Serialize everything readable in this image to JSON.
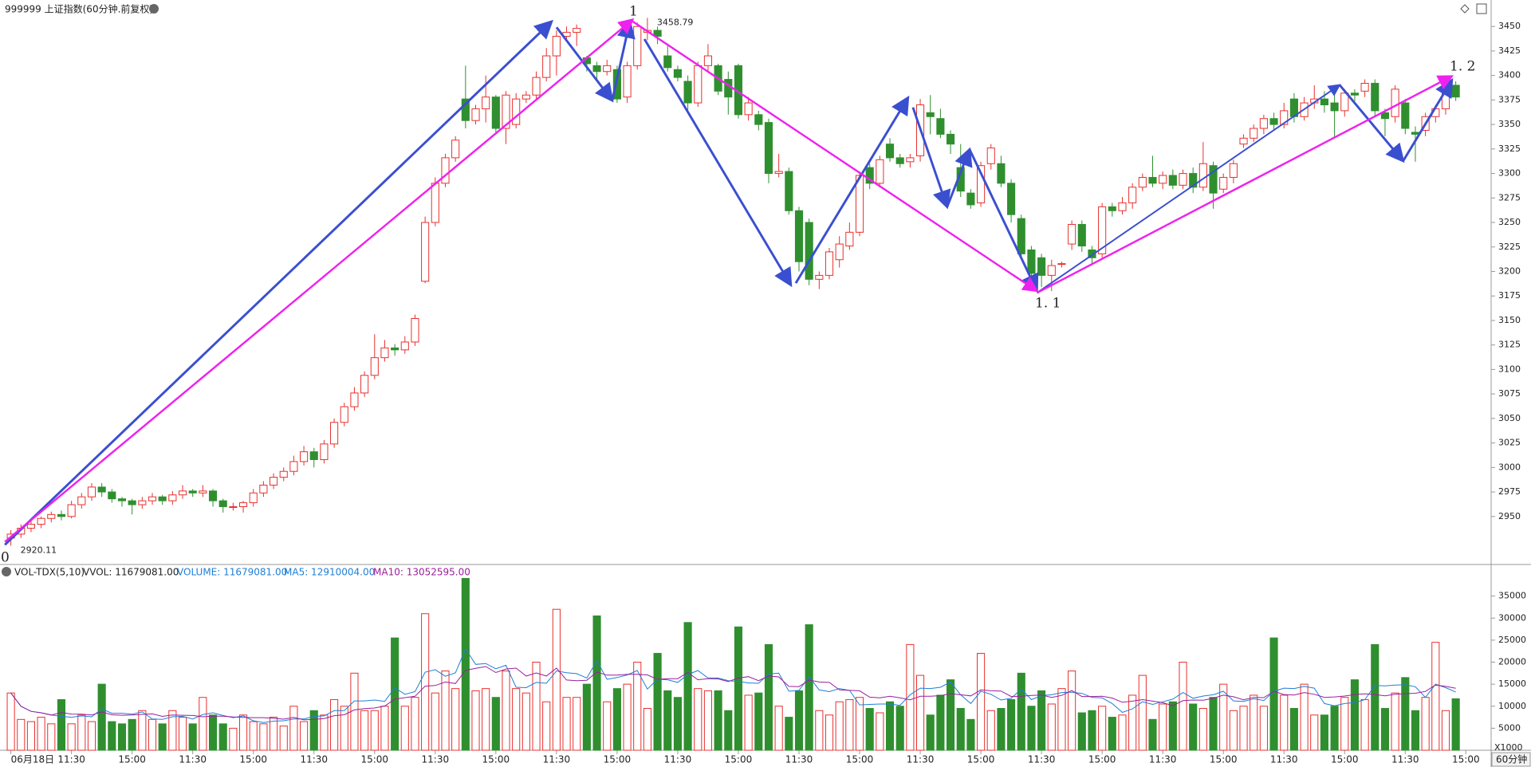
{
  "chart_data": {
    "type": "candlestick",
    "title": "999999 上证指数(60分钟.前复权)",
    "up_color": "#e8312f",
    "down_color": "#2f8f2f",
    "ylim": [
      2901,
      3477
    ],
    "yticks": [
      2950,
      2975,
      3000,
      3025,
      3050,
      3075,
      3100,
      3125,
      3150,
      3175,
      3200,
      3225,
      3250,
      3275,
      3300,
      3325,
      3350,
      3375,
      3400,
      3425,
      3450
    ],
    "xlim": [
      -0.6,
      146.5
    ],
    "xticks": [
      {
        "value": 0,
        "label": "06月18日"
      },
      {
        "value": 6,
        "label": "11:30"
      },
      {
        "value": 12,
        "label": "15:00"
      },
      {
        "value": 18,
        "label": "11:30"
      },
      {
        "value": 24,
        "label": "15:00"
      },
      {
        "value": 30,
        "label": "11:30"
      },
      {
        "value": 36,
        "label": "15:00"
      },
      {
        "value": 42,
        "label": "11:30"
      },
      {
        "value": 48,
        "label": "15:00"
      },
      {
        "value": 54,
        "label": "11:30"
      },
      {
        "value": 60,
        "label": "15:00"
      },
      {
        "value": 66,
        "label": "11:30"
      },
      {
        "value": 72,
        "label": "15:00"
      },
      {
        "value": 78,
        "label": "11:30"
      },
      {
        "value": 84,
        "label": "15:00"
      },
      {
        "value": 90,
        "label": "11:30"
      },
      {
        "value": 96,
        "label": "15:00"
      },
      {
        "value": 102,
        "label": "11:30"
      },
      {
        "value": 108,
        "label": "15:00"
      },
      {
        "value": 114,
        "label": "11:30"
      },
      {
        "value": 120,
        "label": "15:00"
      },
      {
        "value": 126,
        "label": "11:30"
      },
      {
        "value": 132,
        "label": "15:00"
      },
      {
        "value": 138,
        "label": "11:30"
      },
      {
        "value": 144,
        "label": "15:00"
      }
    ],
    "candles": [
      [
        2928,
        2932,
        2936,
        2920.11
      ],
      [
        2932,
        2938,
        2942,
        2928
      ],
      [
        2938,
        2942,
        2946,
        2934
      ],
      [
        2942,
        2948,
        2950,
        2938
      ],
      [
        2948,
        2952,
        2955,
        2944
      ],
      [
        2952,
        2950,
        2956,
        2946
      ],
      [
        2950,
        2962,
        2966,
        2948
      ],
      [
        2962,
        2970,
        2974,
        2958
      ],
      [
        2970,
        2980,
        2984,
        2966
      ],
      [
        2980,
        2975,
        2984,
        2970
      ],
      [
        2975,
        2968,
        2978,
        2964
      ],
      [
        2968,
        2966,
        2970,
        2960
      ],
      [
        2966,
        2962,
        2968,
        2952
      ],
      [
        2962,
        2966,
        2970,
        2958
      ],
      [
        2966,
        2970,
        2974,
        2962
      ],
      [
        2970,
        2966,
        2972,
        2962
      ],
      [
        2966,
        2972,
        2976,
        2962
      ],
      [
        2972,
        2976,
        2982,
        2968
      ],
      [
        2976,
        2974,
        2978,
        2970
      ],
      [
        2974,
        2976,
        2982,
        2970
      ],
      [
        2976,
        2966,
        2978,
        2960
      ],
      [
        2966,
        2960,
        2968,
        2954
      ],
      [
        2960,
        2960,
        2964,
        2956
      ],
      [
        2960,
        2964,
        2966,
        2954
      ],
      [
        2964,
        2974,
        2978,
        2960
      ],
      [
        2974,
        2982,
        2986,
        2970
      ],
      [
        2982,
        2990,
        2994,
        2978
      ],
      [
        2990,
        2996,
        3000,
        2986
      ],
      [
        2996,
        3006,
        3012,
        2992
      ],
      [
        3006,
        3016,
        3022,
        3002
      ],
      [
        3016,
        3008,
        3020,
        3000
      ],
      [
        3008,
        3024,
        3028,
        3004
      ],
      [
        3024,
        3046,
        3050,
        3020
      ],
      [
        3046,
        3062,
        3066,
        3042
      ],
      [
        3062,
        3076,
        3082,
        3058
      ],
      [
        3076,
        3094,
        3098,
        3072
      ],
      [
        3094,
        3112,
        3136,
        3090
      ],
      [
        3112,
        3122,
        3130,
        3108
      ],
      [
        3122,
        3120,
        3126,
        3114
      ],
      [
        3120,
        3128,
        3134,
        3116
      ],
      [
        3128,
        3152,
        3156,
        3124
      ],
      [
        3190,
        3250,
        3256,
        3188
      ],
      [
        3250,
        3290,
        3296,
        3246
      ],
      [
        3290,
        3316,
        3320,
        3286
      ],
      [
        3316,
        3334,
        3338,
        3312
      ],
      [
        3376,
        3354,
        3410,
        3346
      ],
      [
        3354,
        3366,
        3370,
        3350
      ],
      [
        3366,
        3378,
        3400,
        3352
      ],
      [
        3378,
        3346,
        3380,
        3342
      ],
      [
        3346,
        3380,
        3384,
        3330
      ],
      [
        3350,
        3376,
        3382,
        3346
      ],
      [
        3376,
        3380,
        3384,
        3372
      ],
      [
        3380,
        3398,
        3404,
        3376
      ],
      [
        3398,
        3420,
        3428,
        3394
      ],
      [
        3420,
        3440,
        3446,
        3400
      ],
      [
        3440,
        3444,
        3450,
        3436
      ],
      [
        3444,
        3448,
        3452,
        3430
      ],
      [
        3418,
        3412,
        3420,
        3404
      ],
      [
        3410,
        3404,
        3414,
        3396
      ],
      [
        3404,
        3410,
        3416,
        3400
      ],
      [
        3406,
        3376,
        3410,
        3372
      ],
      [
        3378,
        3410,
        3414,
        3372
      ],
      [
        3410,
        3450,
        3454,
        3406
      ],
      [
        3444,
        3446,
        3458.79,
        3436
      ],
      [
        3446,
        3440,
        3450,
        3432
      ],
      [
        3420,
        3408,
        3430,
        3404
      ],
      [
        3406,
        3398,
        3410,
        3394
      ],
      [
        3394,
        3372,
        3400,
        3362
      ],
      [
        3372,
        3410,
        3414,
        3368
      ],
      [
        3410,
        3420,
        3432,
        3404
      ],
      [
        3410,
        3384,
        3412,
        3380
      ],
      [
        3396,
        3378,
        3404,
        3360
      ],
      [
        3410,
        3360,
        3412,
        3356
      ],
      [
        3360,
        3372,
        3378,
        3354
      ],
      [
        3360,
        3350,
        3364,
        3344
      ],
      [
        3352,
        3300,
        3356,
        3290
      ],
      [
        3300,
        3302,
        3320,
        3296
      ],
      [
        3302,
        3262,
        3306,
        3258
      ],
      [
        3262,
        3210,
        3266,
        3200
      ],
      [
        3250,
        3192,
        3254,
        3186
      ],
      [
        3192,
        3196,
        3200,
        3182
      ],
      [
        3196,
        3220,
        3224,
        3192
      ],
      [
        3212,
        3228,
        3236,
        3204
      ],
      [
        3226,
        3240,
        3250,
        3222
      ],
      [
        3240,
        3298,
        3302,
        3236
      ],
      [
        3306,
        3290,
        3310,
        3284
      ],
      [
        3290,
        3314,
        3318,
        3286
      ],
      [
        3330,
        3316,
        3336,
        3312
      ],
      [
        3316,
        3310,
        3320,
        3306
      ],
      [
        3312,
        3316,
        3320,
        3306
      ],
      [
        3318,
        3370,
        3376,
        3312
      ],
      [
        3362,
        3358,
        3380,
        3340
      ],
      [
        3356,
        3340,
        3366,
        3336
      ],
      [
        3340,
        3330,
        3344,
        3320
      ],
      [
        3306,
        3282,
        3330,
        3276
      ],
      [
        3280,
        3268,
        3284,
        3264
      ],
      [
        3270,
        3308,
        3312,
        3266
      ],
      [
        3310,
        3326,
        3330,
        3304
      ],
      [
        3310,
        3290,
        3318,
        3286
      ],
      [
        3290,
        3258,
        3294,
        3250
      ],
      [
        3254,
        3218,
        3258,
        3212
      ],
      [
        3222,
        3198,
        3226,
        3188
      ],
      [
        3214,
        3196,
        3218,
        3184
      ],
      [
        3196,
        3206,
        3212,
        3180
      ],
      [
        3208,
        3208,
        3210,
        3204
      ],
      [
        3228,
        3248,
        3252,
        3222
      ],
      [
        3248,
        3226,
        3252,
        3220
      ],
      [
        3222,
        3214,
        3226,
        3208
      ],
      [
        3218,
        3266,
        3270,
        3214
      ],
      [
        3266,
        3262,
        3270,
        3256
      ],
      [
        3262,
        3270,
        3276,
        3258
      ],
      [
        3270,
        3286,
        3290,
        3264
      ],
      [
        3286,
        3296,
        3300,
        3282
      ],
      [
        3296,
        3290,
        3318,
        3286
      ],
      [
        3290,
        3298,
        3302,
        3284
      ],
      [
        3298,
        3288,
        3304,
        3284
      ],
      [
        3288,
        3300,
        3304,
        3284
      ],
      [
        3300,
        3286,
        3306,
        3280
      ],
      [
        3286,
        3310,
        3332,
        3282
      ],
      [
        3308,
        3280,
        3312,
        3264
      ],
      [
        3284,
        3296,
        3300,
        3280
      ],
      [
        3296,
        3310,
        3314,
        3290
      ],
      [
        3330,
        3336,
        3340,
        3326
      ],
      [
        3336,
        3346,
        3350,
        3332
      ],
      [
        3346,
        3356,
        3360,
        3340
      ],
      [
        3356,
        3350,
        3362,
        3344
      ],
      [
        3350,
        3364,
        3372,
        3346
      ],
      [
        3376,
        3358,
        3382,
        3352
      ],
      [
        3358,
        3372,
        3378,
        3354
      ],
      [
        3372,
        3376,
        3390,
        3366
      ],
      [
        3376,
        3370,
        3384,
        3362
      ],
      [
        3372,
        3364,
        3380,
        3336
      ],
      [
        3364,
        3382,
        3386,
        3358
      ],
      [
        3382,
        3380,
        3386,
        3374
      ],
      [
        3384,
        3392,
        3396,
        3378
      ],
      [
        3392,
        3364,
        3396,
        3358
      ],
      [
        3362,
        3356,
        3366,
        3338
      ],
      [
        3358,
        3386,
        3390,
        3352
      ],
      [
        3372,
        3346,
        3376,
        3340
      ],
      [
        3342,
        3340,
        3348,
        3312
      ],
      [
        3344,
        3358,
        3362,
        3338
      ],
      [
        3358,
        3366,
        3370,
        3352
      ],
      [
        3366,
        3390,
        3394,
        3360
      ],
      [
        3390,
        3378,
        3394,
        3374
      ]
    ],
    "volume_title": "VOL-TDX(5,10)",
    "volume_labels": [
      "VVOL: 11679081.00",
      "VOLUME: 11679081.00",
      "MA5: 12910004.00",
      "MA10: 13052595.00"
    ],
    "volume_unit": "X1000",
    "period": "60分钟",
    "ma5_color": "#1f7fd6",
    "ma10_color": "#9b1f9b",
    "volume_ylim": [
      0,
      40000
    ],
    "volume_yticks": [
      5000,
      10000,
      15000,
      20000,
      25000,
      30000,
      35000
    ],
    "volume": [
      13000,
      7000,
      6500,
      7500,
      6000,
      11500,
      6000,
      8000,
      6500,
      15000,
      6500,
      6000,
      7000,
      9000,
      7000,
      6000,
      9000,
      7500,
      6000,
      12000,
      8000,
      6000,
      5000,
      8000,
      6500,
      6000,
      7500,
      5500,
      10000,
      6500,
      9000,
      8000,
      11500,
      10000,
      17500,
      9000,
      9000,
      10000,
      25500,
      10000,
      12000,
      31000,
      13000,
      18000,
      14000,
      39000,
      13500,
      14000,
      12000,
      18000,
      14000,
      13000,
      20000,
      11000,
      32000,
      12000,
      12000,
      15000,
      30500,
      11000,
      14000,
      15000,
      20000,
      9500,
      22000,
      13500,
      12000,
      29000,
      14000,
      13500,
      13500,
      9000,
      28000,
      12500,
      13000,
      24000,
      10000,
      7500,
      13500,
      28500,
      9000,
      8000,
      11000,
      11500,
      12000,
      9500,
      8500,
      11000,
      10000,
      24000,
      17000,
      8000,
      12500,
      16000,
      9500,
      7000,
      22000,
      9000,
      9500,
      11500,
      17500,
      10000,
      13500,
      10500,
      14000,
      18000,
      8500,
      9000,
      10000,
      7500,
      8000,
      12500,
      17000,
      7000,
      10500,
      11000,
      20000,
      10500,
      9500,
      12000,
      15000,
      9000,
      10000,
      12500,
      10000,
      25500,
      12500,
      9500,
      15000,
      8000,
      8000,
      10000,
      12000,
      16000,
      11500,
      24000,
      9500,
      13000,
      16500,
      9000,
      12000,
      24500,
      9000,
      11679
    ],
    "wave_labels": [
      "0",
      "1",
      "1. 1",
      "1. 2"
    ]
  }
}
